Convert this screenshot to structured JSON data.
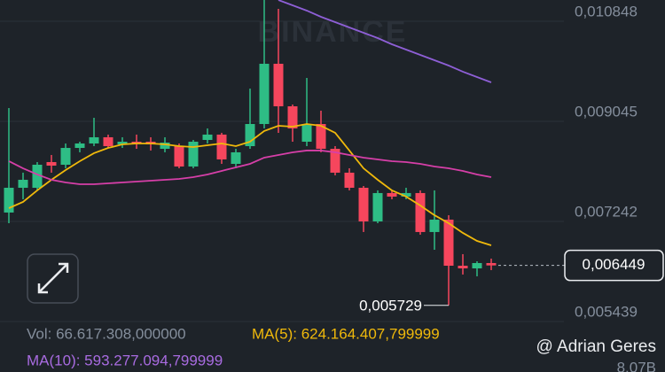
{
  "chart_data": {
    "type": "candlestick",
    "watermark": "BINANCE",
    "ylim": [
      0.005327,
      0.011231
    ],
    "yticks": [
      {
        "value": 0.010848,
        "label": "0,010848"
      },
      {
        "value": 0.009045,
        "label": "0,009045"
      },
      {
        "value": 0.007242,
        "label": "0,007242"
      },
      {
        "value": 0.005439,
        "label": "0,005439"
      }
    ],
    "grid": true,
    "up_color": "#2ebd85",
    "down_color": "#f6465d",
    "open": [
      0.007402,
      0.007848,
      0.007848,
      0.008311,
      0.008263,
      0.008566,
      0.008646,
      0.008758,
      0.00863,
      0.008678,
      0.008678,
      0.00855,
      0.008598,
      0.008231,
      0.00871,
      0.008806,
      0.008279,
      0.008598,
      0.008997,
      0.010082,
      0.009316,
      0.008678,
      0.008997,
      0.00855,
      0.00812,
      0.007848,
      0.007242,
      0.007753,
      0.007689,
      0.007753,
      0.007051,
      0.007274,
      0.006444,
      0.006396,
      0.006492
    ],
    "high": [
      0.009284,
      0.00812,
      0.008311,
      0.008439,
      0.008646,
      0.008678,
      0.009109,
      0.008806,
      0.008758,
      0.008806,
      0.008758,
      0.008758,
      0.008646,
      0.00871,
      0.008917,
      0.008838,
      0.00855,
      0.009635,
      0.011231,
      0.011071,
      0.009348,
      0.009827,
      0.009237,
      0.008598,
      0.008199,
      0.00788,
      0.007801,
      0.007801,
      0.007848,
      0.007801,
      0.007801,
      0.007354,
      0.006652,
      0.006524,
      0.006572
    ],
    "low": [
      0.00721,
      0.007641,
      0.007801,
      0.00812,
      0.008199,
      0.008487,
      0.008598,
      0.008566,
      0.008566,
      0.00855,
      0.008519,
      0.008487,
      0.008199,
      0.008199,
      0.008646,
      0.008279,
      0.008199,
      0.00855,
      0.008917,
      0.008838,
      0.008678,
      0.008598,
      0.008487,
      0.008072,
      0.007801,
      0.007051,
      0.00721,
      0.007641,
      0.007641,
      0.007003,
      0.006731,
      0.005729,
      0.006285,
      0.006253,
      0.006365
    ],
    "close": [
      0.007848,
      0.007992,
      0.008263,
      0.008247,
      0.008566,
      0.008646,
      0.008758,
      0.008598,
      0.008678,
      0.008646,
      0.00863,
      0.008662,
      0.008231,
      0.008678,
      0.008806,
      0.008359,
      0.008487,
      0.008997,
      0.010082,
      0.009316,
      0.008917,
      0.008997,
      0.00855,
      0.00812,
      0.007848,
      0.007242,
      0.007753,
      0.007689,
      0.007753,
      0.007051,
      0.007274,
      0.006444,
      0.006396,
      0.006492,
      0.006449
    ],
    "lines": [
      {
        "color": "#f0b90b",
        "values": [
          0.007481,
          0.007593,
          0.007801,
          0.007992,
          0.008168,
          0.008327,
          0.008471,
          0.008566,
          0.00863,
          0.008646,
          0.008646,
          0.00863,
          0.008598,
          0.008582,
          0.008614,
          0.008646,
          0.008598,
          0.008678,
          0.00887,
          0.008965,
          0.008949,
          0.008997,
          0.008965,
          0.008838,
          0.008519,
          0.008199,
          0.007992,
          0.007801,
          0.007689,
          0.007529,
          0.007354,
          0.00721,
          0.007035,
          0.006891,
          0.006811
        ]
      },
      {
        "color": "#d63fa8",
        "values": [
          0.008327,
          0.008199,
          0.008088,
          0.007992,
          0.007944,
          0.007912,
          0.007912,
          0.007928,
          0.007944,
          0.00796,
          0.007976,
          0.007992,
          0.008008,
          0.00804,
          0.008088,
          0.008152,
          0.008215,
          0.008279,
          0.008391,
          0.008439,
          0.008487,
          0.008519,
          0.008519,
          0.008487,
          0.008439,
          0.008391,
          0.008359,
          0.008327,
          0.008311,
          0.008279,
          0.008231,
          0.008199,
          0.008152,
          0.008088,
          0.00804
        ]
      },
      {
        "color": "#8e5fd6",
        "values": [
          null,
          null,
          null,
          null,
          null,
          null,
          null,
          null,
          null,
          null,
          null,
          null,
          null,
          null,
          null,
          null,
          null,
          null,
          null,
          0.011231,
          0.011135,
          0.01104,
          0.010928,
          0.010832,
          0.010736,
          0.010641,
          0.010545,
          0.010433,
          0.010337,
          0.010242,
          0.010146,
          0.01005,
          0.009939,
          0.009843,
          0.009747
        ]
      }
    ],
    "last_price": {
      "value": 0.006449,
      "label": "0,006449"
    },
    "low_marker": {
      "value": 0.005729,
      "label": "0,005729"
    },
    "volume_text": "Vol: 66.617.308,000000",
    "vol_ma5_text": "MA(5): 624.164.407,799999",
    "vol_ma10_text": "MA(10): 593.277.094,799999",
    "volume_axis_label": "8.07B",
    "credit": "@ Adrian Geres"
  }
}
